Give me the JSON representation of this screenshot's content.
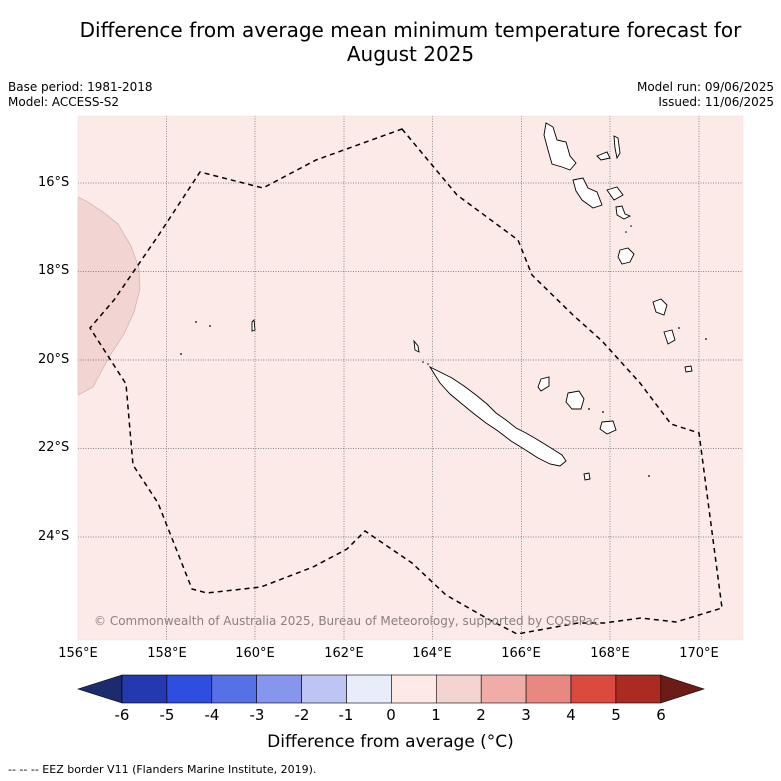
{
  "title_line1": "Difference from average mean minimum temperature forecast for",
  "title_line2": "August 2025",
  "base_period": "Base period: 1981-2018",
  "model": "Model: ACCESS-S2",
  "model_run": "Model run: 09/06/2025",
  "issued": "Issued: 11/06/2025",
  "copyright": "© Commonwealth of Australia 2025, Bureau of Meteorology, supported by COSPPac",
  "lat_labels": [
    "16°S",
    "18°S",
    "20°S",
    "22°S",
    "24°S"
  ],
  "lon_labels": [
    "156°E",
    "158°E",
    "160°E",
    "162°E",
    "164°E",
    "166°E",
    "168°E",
    "170°E"
  ],
  "colorbar": {
    "title": "Difference from average (°C)",
    "ticks": [
      "-6",
      "-5",
      "-4",
      "-3",
      "-2",
      "-1",
      "0",
      "1",
      "2",
      "3",
      "4",
      "5",
      "6"
    ],
    "colors": [
      "#1c2a6e",
      "#2438b0",
      "#2e4ee0",
      "#5670e6",
      "#8596ec",
      "#bfc5f3",
      "#e9ecfb",
      "#fde9e6",
      "#f4d4d0",
      "#f0ada8",
      "#e98880",
      "#dc4a3f",
      "#ab2a22",
      "#6c1c17"
    ]
  },
  "colors": {
    "map_background": "#fbeae8",
    "anomaly_patch": "#f2d5d3",
    "land_fill": "#ffffff"
  },
  "legend_note": "--  --  -- EEZ border V11 (Flanders Marine Institute, 2019)."
}
